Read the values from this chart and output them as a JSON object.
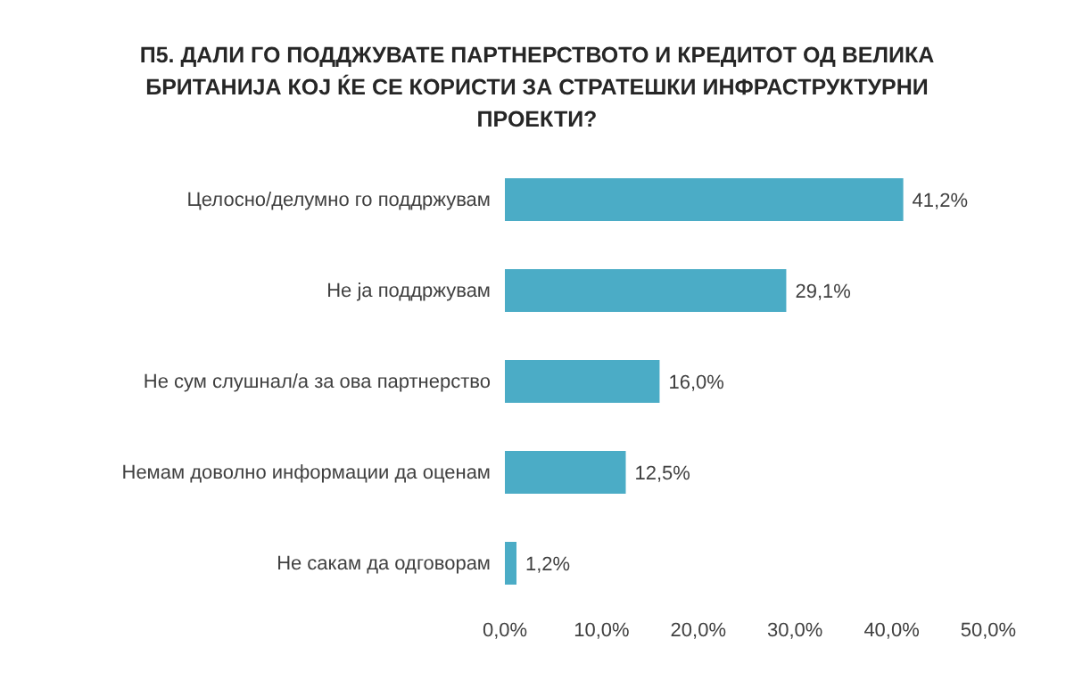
{
  "chart_data": {
    "type": "bar",
    "orientation": "horizontal",
    "title": "П5. ДАЛИ ГО ПОДДЖУВАТЕ ПАРТНЕРСТВОТО И КРЕДИТОТ ОД ВЕЛИКА БРИТАНИЈА КОЈ ЌЕ СЕ КОРИСТИ ЗА СТРАТЕШКИ ИНФРАСТРУКТУРНИ ПРОЕКТИ?",
    "categories": [
      "Целосно/делумно го поддржувам",
      "Не ја поддржувам",
      "Не сум слушнал/а за ова партнерство",
      "Немам доволно информации да оценам",
      "Не сакам да одговорам"
    ],
    "values": [
      41.2,
      29.1,
      16.0,
      12.5,
      1.2
    ],
    "value_labels": [
      "41,2%",
      "29,1%",
      "16,0%",
      "12,5%",
      "1,2%"
    ],
    "color": "#4bacc6",
    "xlim": [
      0,
      50
    ],
    "xticks": [
      {
        "value": 0,
        "label": "0,0%"
      },
      {
        "value": 10,
        "label": "10,0%"
      },
      {
        "value": 20,
        "label": "20,0%"
      },
      {
        "value": 30,
        "label": "30,0%"
      },
      {
        "value": 40,
        "label": "40,0%"
      },
      {
        "value": 50,
        "label": "50,0%"
      }
    ],
    "grid": false,
    "legend": false
  }
}
